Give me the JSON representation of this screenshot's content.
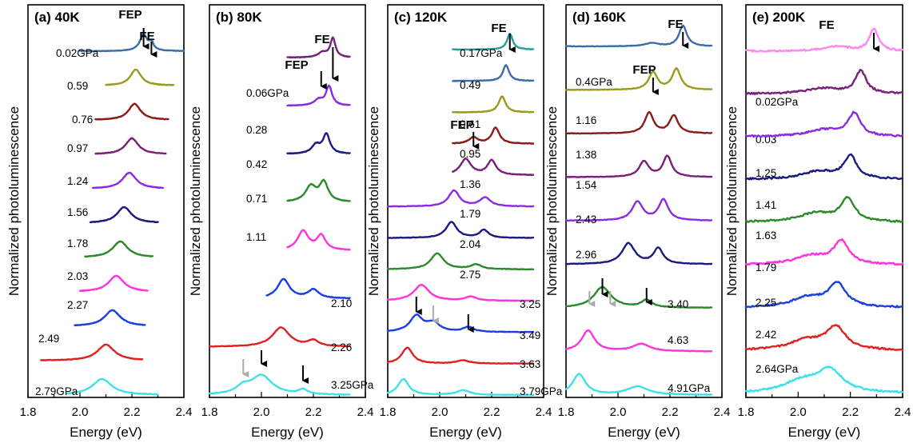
{
  "chart_data": [
    {
      "type": "line",
      "title": "(a) 40K",
      "xlabel": "Energy (eV)",
      "ylabel": "Normalized photoluminescence",
      "xlim": [
        1.8,
        2.4
      ],
      "xticks": [
        "1.8",
        "2.0",
        "2.2",
        "2.4"
      ],
      "series": [
        {
          "label": "0.02GPa",
          "color": "#3b6ea8",
          "range": [
            2.0,
            2.4
          ],
          "peaks": [
            {
              "e": 2.245,
              "h": 1.0,
              "w": 0.018
            },
            {
              "e": 2.275,
              "h": 0.45,
              "w": 0.01
            }
          ]
        },
        {
          "label": "0.59",
          "color": "#9a9a20",
          "range": [
            2.1,
            2.36
          ],
          "peaks": [
            {
              "e": 2.215,
              "h": 1.0,
              "w": 0.025
            }
          ]
        },
        {
          "label": "0.76",
          "color": "#8b1a1a",
          "range": [
            2.06,
            2.34
          ],
          "peaks": [
            {
              "e": 2.21,
              "h": 1.0,
              "w": 0.028
            }
          ]
        },
        {
          "label": "0.97",
          "color": "#7a1f7a",
          "range": [
            2.06,
            2.33
          ],
          "peaks": [
            {
              "e": 2.2,
              "h": 1.0,
              "w": 0.03
            }
          ]
        },
        {
          "label": "1.24",
          "color": "#8a2be2",
          "range": [
            2.05,
            2.32
          ],
          "peaks": [
            {
              "e": 2.19,
              "h": 1.0,
              "w": 0.032
            }
          ]
        },
        {
          "label": "1.56",
          "color": "#1a1a80",
          "range": [
            2.04,
            2.3
          ],
          "peaks": [
            {
              "e": 2.17,
              "h": 1.0,
              "w": 0.033
            }
          ]
        },
        {
          "label": "1.78",
          "color": "#2a8a2a",
          "range": [
            2.02,
            2.28
          ],
          "peaks": [
            {
              "e": 2.155,
              "h": 1.0,
              "w": 0.035
            }
          ]
        },
        {
          "label": "2.03",
          "color": "#ff33dd",
          "range": [
            2.0,
            2.26
          ],
          "peaks": [
            {
              "e": 2.14,
              "h": 1.0,
              "w": 0.036
            }
          ]
        },
        {
          "label": "2.27",
          "color": "#1a3fe0",
          "range": [
            1.98,
            2.25
          ],
          "peaks": [
            {
              "e": 2.125,
              "h": 1.0,
              "w": 0.037
            }
          ]
        },
        {
          "label": "2.49",
          "color": "#e02020",
          "range": [
            1.85,
            2.24
          ],
          "peaks": [
            {
              "e": 2.1,
              "h": 1.0,
              "w": 0.04
            }
          ]
        },
        {
          "label": "2.79GPa",
          "color": "#40e0e8",
          "range": [
            1.95,
            2.3
          ],
          "peaks": [
            {
              "e": 2.085,
              "h": 1.0,
              "w": 0.045
            }
          ]
        }
      ],
      "annotations": [
        {
          "text": "FEP",
          "e": 2.245
        },
        {
          "text": "FE",
          "e": 2.275
        }
      ]
    },
    {
      "type": "line",
      "title": "(b) 80K",
      "xlabel": "Energy (eV)",
      "ylabel": "Normalized photoluminescence",
      "xlim": [
        1.8,
        2.4
      ],
      "xticks": [
        "1.8",
        "2.0",
        "2.2",
        "2.4"
      ],
      "series": [
        {
          "label": "0.06GPa",
          "color": "#7a1f7a",
          "range": [
            2.1,
            2.34
          ],
          "peaks": [
            {
              "e": 2.275,
              "h": 1.0,
              "w": 0.012
            },
            {
              "e": 2.235,
              "h": 0.25,
              "w": 0.02
            }
          ]
        },
        {
          "label": "0.28",
          "color": "#8a2be2",
          "range": [
            2.1,
            2.34
          ],
          "peaks": [
            {
              "e": 2.26,
              "h": 1.0,
              "w": 0.014
            },
            {
              "e": 2.22,
              "h": 0.3,
              "w": 0.02
            }
          ]
        },
        {
          "label": "0.42",
          "color": "#1a1a80",
          "range": [
            2.1,
            2.34
          ],
          "peaks": [
            {
              "e": 2.25,
              "h": 1.0,
              "w": 0.016
            },
            {
              "e": 2.21,
              "h": 0.45,
              "w": 0.02
            }
          ]
        },
        {
          "label": "0.71",
          "color": "#2a8a2a",
          "range": [
            2.1,
            2.34
          ],
          "peaks": [
            {
              "e": 2.24,
              "h": 1.0,
              "w": 0.02
            },
            {
              "e": 2.19,
              "h": 0.8,
              "w": 0.025
            }
          ]
        },
        {
          "label": "1.11",
          "color": "#ff33dd",
          "range": [
            2.1,
            2.34
          ],
          "peaks": [
            {
              "e": 2.23,
              "h": 0.75,
              "w": 0.02
            },
            {
              "e": 2.16,
              "h": 1.0,
              "w": 0.025
            }
          ]
        },
        {
          "label": "2.10",
          "color": "#1a3fe0",
          "range": [
            2.02,
            2.34
          ],
          "peaks": [
            {
              "e": 2.085,
              "h": 1.0,
              "w": 0.028
            },
            {
              "e": 2.2,
              "h": 0.45,
              "w": 0.025
            }
          ]
        },
        {
          "label": "2.26",
          "color": "#e02020",
          "range": [
            1.8,
            2.34
          ],
          "peaks": [
            {
              "e": 2.075,
              "h": 1.0,
              "w": 0.04
            },
            {
              "e": 2.2,
              "h": 0.3,
              "w": 0.025
            }
          ]
        },
        {
          "label": "3.25GPa",
          "color": "#40e0e8",
          "range": [
            1.8,
            2.34
          ],
          "peaks": [
            {
              "e": 2.0,
              "h": 1.0,
              "w": 0.05
            },
            {
              "e": 1.93,
              "h": 0.35,
              "w": 0.03
            },
            {
              "e": 2.16,
              "h": 0.25,
              "w": 0.02
            }
          ]
        }
      ],
      "annotations": [
        {
          "text": "FEP",
          "e": 2.23
        },
        {
          "text": "FE",
          "e": 2.275
        }
      ]
    },
    {
      "type": "line",
      "title": "(c) 120K",
      "xlabel": "Energy (eV)",
      "ylabel": "Normalized photoluminescence",
      "xlim": [
        1.8,
        2.4
      ],
      "xticks": [
        "1.8",
        "2.0",
        "2.2",
        "2.4"
      ],
      "series": [
        {
          "label": "0.17GPa",
          "color": "#2a9a9a",
          "range": [
            2.05,
            2.36
          ],
          "peaks": [
            {
              "e": 2.27,
              "h": 1.0,
              "w": 0.013
            }
          ]
        },
        {
          "label": "0.49",
          "color": "#3b6ea8",
          "range": [
            2.05,
            2.36
          ],
          "peaks": [
            {
              "e": 2.255,
              "h": 1.0,
              "w": 0.014
            }
          ]
        },
        {
          "label": "0.61",
          "color": "#9a9a20",
          "range": [
            2.05,
            2.36
          ],
          "peaks": [
            {
              "e": 2.24,
              "h": 1.0,
              "w": 0.016
            }
          ]
        },
        {
          "label": "0.95",
          "color": "#8b1a1a",
          "range": [
            2.05,
            2.36
          ],
          "peaks": [
            {
              "e": 2.215,
              "h": 1.0,
              "w": 0.018
            },
            {
              "e": 2.13,
              "h": 0.4,
              "w": 0.02
            }
          ]
        },
        {
          "label": "1.36",
          "color": "#7a1f7a",
          "range": [
            2.05,
            2.36
          ],
          "peaks": [
            {
              "e": 2.2,
              "h": 0.9,
              "w": 0.02
            },
            {
              "e": 2.1,
              "h": 1.0,
              "w": 0.025
            }
          ]
        },
        {
          "label": "1.79",
          "color": "#8a2be2",
          "range": [
            1.8,
            2.36
          ],
          "peaks": [
            {
              "e": 2.055,
              "h": 1.0,
              "w": 0.025
            },
            {
              "e": 2.175,
              "h": 0.55,
              "w": 0.025
            }
          ]
        },
        {
          "label": "2.04",
          "color": "#1a1a80",
          "range": [
            1.8,
            2.36
          ],
          "peaks": [
            {
              "e": 2.045,
              "h": 1.0,
              "w": 0.025
            },
            {
              "e": 2.17,
              "h": 0.5,
              "w": 0.02
            }
          ]
        },
        {
          "label": "2.75",
          "color": "#2a8a2a",
          "range": [
            1.8,
            2.36
          ],
          "peaks": [
            {
              "e": 1.99,
              "h": 1.0,
              "w": 0.03
            },
            {
              "e": 2.14,
              "h": 0.3,
              "w": 0.025
            }
          ]
        },
        {
          "label": "3.25",
          "color": "#ff33dd",
          "range": [
            1.8,
            2.36
          ],
          "peaks": [
            {
              "e": 1.93,
              "h": 1.0,
              "w": 0.035
            },
            {
              "e": 2.12,
              "h": 0.25,
              "w": 0.025
            }
          ]
        },
        {
          "label": "3.49",
          "color": "#1a3fe0",
          "range": [
            1.8,
            2.36
          ],
          "peaks": [
            {
              "e": 1.91,
              "h": 1.0,
              "w": 0.03
            },
            {
              "e": 1.975,
              "h": 0.55,
              "w": 0.03
            },
            {
              "e": 2.11,
              "h": 0.3,
              "w": 0.025
            }
          ]
        },
        {
          "label": "3.63",
          "color": "#e02020",
          "range": [
            1.8,
            2.36
          ],
          "peaks": [
            {
              "e": 1.875,
              "h": 1.0,
              "w": 0.025
            },
            {
              "e": 2.09,
              "h": 0.2,
              "w": 0.03
            }
          ]
        },
        {
          "label": "3.79GPa",
          "color": "#40e0e8",
          "range": [
            1.8,
            2.36
          ],
          "peaks": [
            {
              "e": 1.86,
              "h": 1.0,
              "w": 0.025
            },
            {
              "e": 2.09,
              "h": 0.3,
              "w": 0.03
            }
          ]
        }
      ],
      "annotations": [
        {
          "text": "FE",
          "e": 2.27
        },
        {
          "text": "FEP",
          "e": 2.13
        }
      ]
    },
    {
      "type": "line",
      "title": "(d) 160K",
      "xlabel": "Energy (eV)",
      "ylabel": "Normalized photoluminescence",
      "xlim": [
        1.8,
        2.4
      ],
      "xticks": [
        "1.8",
        "2.0",
        "2.2",
        "2.4"
      ],
      "series": [
        {
          "label": "0.4GPa",
          "color": "#3b6ea8",
          "range": [
            1.8,
            2.36
          ],
          "peaks": [
            {
              "e": 2.25,
              "h": 1.0,
              "w": 0.018
            },
            {
              "e": 2.13,
              "h": 0.15,
              "w": 0.03
            }
          ]
        },
        {
          "label": "1.16",
          "color": "#9a9a20",
          "range": [
            1.8,
            2.36
          ],
          "peaks": [
            {
              "e": 2.225,
              "h": 1.0,
              "w": 0.02
            },
            {
              "e": 2.135,
              "h": 0.85,
              "w": 0.02
            }
          ]
        },
        {
          "label": "1.38",
          "color": "#8b1a1a",
          "range": [
            1.8,
            2.36
          ],
          "peaks": [
            {
              "e": 2.215,
              "h": 0.85,
              "w": 0.02
            },
            {
              "e": 2.12,
              "h": 1.0,
              "w": 0.02
            }
          ]
        },
        {
          "label": "1.54",
          "color": "#7a1f7a",
          "range": [
            1.8,
            2.36
          ],
          "peaks": [
            {
              "e": 2.19,
              "h": 1.0,
              "w": 0.02
            },
            {
              "e": 2.1,
              "h": 0.75,
              "w": 0.022
            }
          ]
        },
        {
          "label": "2.43",
          "color": "#8a2be2",
          "range": [
            1.8,
            2.36
          ],
          "peaks": [
            {
              "e": 2.075,
              "h": 0.9,
              "w": 0.025
            },
            {
              "e": 2.175,
              "h": 1.0,
              "w": 0.022
            }
          ]
        },
        {
          "label": "2.96",
          "color": "#1a1a80",
          "range": [
            1.8,
            2.36
          ],
          "peaks": [
            {
              "e": 2.04,
              "h": 1.0,
              "w": 0.03
            },
            {
              "e": 2.155,
              "h": 0.75,
              "w": 0.022
            }
          ]
        },
        {
          "label": "3.40",
          "color": "#2a8a2a",
          "range": [
            1.8,
            2.36
          ],
          "peaks": [
            {
              "e": 1.94,
              "h": 1.0,
              "w": 0.04
            },
            {
              "e": 2.11,
              "h": 0.35,
              "w": 0.025
            }
          ]
        },
        {
          "label": "4.63",
          "color": "#ff33dd",
          "range": [
            1.8,
            2.36
          ],
          "peaks": [
            {
              "e": 1.885,
              "h": 1.0,
              "w": 0.03
            },
            {
              "e": 2.09,
              "h": 0.35,
              "w": 0.04
            }
          ]
        },
        {
          "label": "4.91GPa",
          "color": "#40e0e8",
          "range": [
            1.8,
            2.36
          ],
          "peaks": [
            {
              "e": 1.85,
              "h": 1.0,
              "w": 0.03
            },
            {
              "e": 2.075,
              "h": 0.4,
              "w": 0.05
            }
          ]
        }
      ],
      "annotations": [
        {
          "text": "FE",
          "e": 2.25
        },
        {
          "text": "FEP",
          "e": 2.135
        }
      ]
    },
    {
      "type": "line",
      "title": "(e) 200K",
      "xlabel": "Energy (eV)",
      "ylabel": "Normalized photoluminescence",
      "xlim": [
        1.8,
        2.4
      ],
      "xticks": [
        "1.8",
        "2.0",
        "2.2",
        "2.4"
      ],
      "series": [
        {
          "label": "0.02GPa",
          "color": "#ff88ee",
          "range": [
            1.8,
            2.4
          ],
          "peaks": [
            {
              "e": 2.29,
              "h": 1.0,
              "w": 0.02
            },
            {
              "e": 2.15,
              "h": 0.2,
              "w": 0.06
            }
          ]
        },
        {
          "label": "0.03",
          "color": "#7a1f7a",
          "range": [
            1.8,
            2.4
          ],
          "peaks": [
            {
              "e": 2.24,
              "h": 1.0,
              "w": 0.025
            },
            {
              "e": 2.1,
              "h": 0.25,
              "w": 0.08
            }
          ]
        },
        {
          "label": "1.25",
          "color": "#8a2be2",
          "range": [
            1.8,
            2.4
          ],
          "peaks": [
            {
              "e": 2.215,
              "h": 1.0,
              "w": 0.028
            },
            {
              "e": 2.1,
              "h": 0.3,
              "w": 0.08
            }
          ]
        },
        {
          "label": "1.41",
          "color": "#1a1a80",
          "range": [
            1.8,
            2.4
          ],
          "peaks": [
            {
              "e": 2.2,
              "h": 1.0,
              "w": 0.03
            },
            {
              "e": 2.08,
              "h": 0.35,
              "w": 0.08
            }
          ]
        },
        {
          "label": "1.63",
          "color": "#2a8a2a",
          "range": [
            1.8,
            2.4
          ],
          "peaks": [
            {
              "e": 2.19,
              "h": 1.0,
              "w": 0.032
            },
            {
              "e": 2.07,
              "h": 0.4,
              "w": 0.08
            }
          ]
        },
        {
          "label": "1.79",
          "color": "#ff33dd",
          "range": [
            1.8,
            2.4
          ],
          "peaks": [
            {
              "e": 2.165,
              "h": 1.0,
              "w": 0.035
            },
            {
              "e": 2.05,
              "h": 0.4,
              "w": 0.08
            }
          ]
        },
        {
          "label": "2.25",
          "color": "#1a3fe0",
          "range": [
            1.8,
            2.4
          ],
          "peaks": [
            {
              "e": 2.15,
              "h": 1.0,
              "w": 0.04
            },
            {
              "e": 2.04,
              "h": 0.45,
              "w": 0.08
            }
          ]
        },
        {
          "label": "2.42",
          "color": "#e02020",
          "range": [
            1.8,
            2.4
          ],
          "peaks": [
            {
              "e": 2.145,
              "h": 1.0,
              "w": 0.045
            },
            {
              "e": 2.03,
              "h": 0.45,
              "w": 0.08
            }
          ]
        },
        {
          "label": "2.64GPa",
          "color": "#40e0e8",
          "range": [
            1.8,
            2.4
          ],
          "peaks": [
            {
              "e": 2.12,
              "h": 1.0,
              "w": 0.06
            },
            {
              "e": 2.01,
              "h": 0.5,
              "w": 0.08
            }
          ]
        }
      ],
      "annotations": [
        {
          "text": "FE",
          "e": 2.29
        }
      ]
    }
  ]
}
